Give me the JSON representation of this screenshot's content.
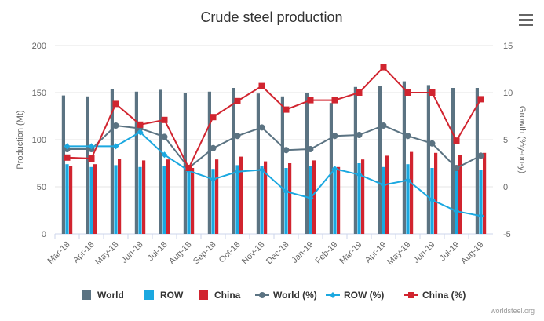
{
  "chart_data": {
    "type": "bar",
    "title": "Crude steel production",
    "categories": [
      "Mar-18",
      "Apr-18",
      "May-18",
      "Jun-18",
      "Jul-18",
      "Aug-18",
      "Sep-18",
      "Oct-18",
      "Nov-18",
      "Dec-18",
      "Jan-19",
      "Feb-19",
      "Mar-19",
      "Apr-19",
      "May-19",
      "Jun-19",
      "Jul-19",
      "Aug-19"
    ],
    "ylabel": "Production (Mt)",
    "y2label": "Growth (%y-on-y)",
    "ylim": [
      0,
      200
    ],
    "y2lim": [
      -5,
      15
    ],
    "yticks": [
      "0",
      "50",
      "100",
      "150",
      "200"
    ],
    "y2ticks": [
      "-5",
      "0",
      "5",
      "10",
      "15"
    ],
    "grid": true,
    "legend_position": "bottom",
    "series": [
      {
        "name": "World",
        "kind": "bar",
        "axis": "left",
        "color": "#5b7382",
        "values": [
          147,
          146,
          154,
          151,
          153,
          150,
          151,
          155,
          149,
          146,
          150,
          139,
          156,
          157,
          162,
          158,
          155,
          155
        ]
      },
      {
        "name": "ROW",
        "kind": "bar",
        "axis": "left",
        "color": "#1ba8e0",
        "values": [
          74,
          71,
          73,
          71,
          72,
          73,
          69,
          73,
          72,
          70,
          72,
          71,
          75,
          71,
          74,
          70,
          70,
          68
        ]
      },
      {
        "name": "China",
        "kind": "bar",
        "axis": "left",
        "color": "#d1242f",
        "values": [
          72,
          74,
          80,
          78,
          79,
          70,
          79,
          82,
          77,
          75,
          78,
          71,
          79,
          83,
          87,
          86,
          84,
          86
        ]
      },
      {
        "name": "World (%)",
        "kind": "line",
        "axis": "right",
        "color": "#5b7382",
        "marker": "circle",
        "values": [
          4.0,
          4.0,
          6.5,
          6.2,
          5.3,
          2.0,
          4.1,
          5.4,
          6.3,
          3.9,
          4.0,
          5.4,
          5.5,
          6.5,
          5.4,
          4.6,
          2.0,
          3.3
        ]
      },
      {
        "name": "ROW (%)",
        "kind": "line",
        "axis": "right",
        "color": "#1ba8e0",
        "marker": "diamond",
        "values": [
          4.3,
          4.3,
          4.3,
          5.8,
          3.4,
          1.7,
          0.8,
          1.6,
          1.8,
          -0.5,
          -1.2,
          1.9,
          1.3,
          0.2,
          0.7,
          -1.4,
          -2.6,
          -3.1
        ]
      },
      {
        "name": "China (%)",
        "kind": "line",
        "axis": "right",
        "color": "#d1242f",
        "marker": "square",
        "values": [
          3.1,
          3.0,
          8.8,
          6.6,
          7.1,
          2.0,
          7.4,
          9.1,
          10.7,
          8.2,
          9.2,
          9.2,
          10.0,
          12.7,
          10.0,
          10.0,
          4.9,
          9.3
        ]
      }
    ],
    "credit": "worldsteel.org"
  },
  "ui": {
    "menu_icon": "hamburger-menu-icon"
  }
}
